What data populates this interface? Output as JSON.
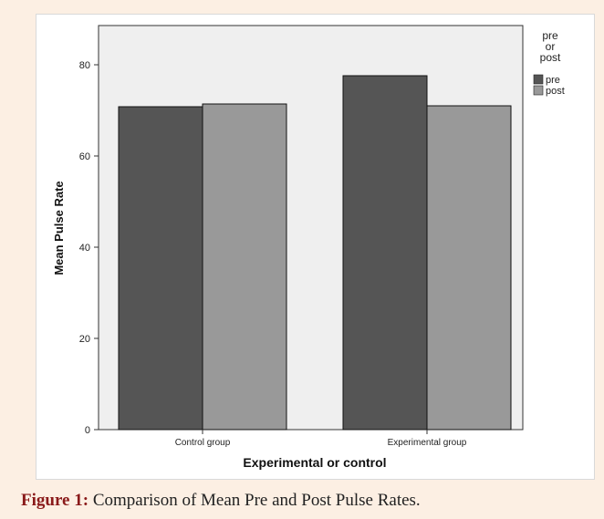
{
  "figure": {
    "caption_label": "Figure 1:",
    "caption_text": " Comparison of Mean Pre and Post Pulse Rates."
  },
  "chart_data": {
    "type": "bar",
    "categories": [
      "Control group",
      "Experimental group"
    ],
    "series": [
      {
        "name": "pre",
        "values": [
          70.8,
          77.6
        ],
        "color": "#555555"
      },
      {
        "name": "post",
        "values": [
          71.4,
          71.0
        ],
        "color": "#999999"
      }
    ],
    "xlabel": "Experimental or control",
    "ylabel": "Mean Pulse Rate",
    "ylim": [
      0,
      80
    ],
    "yticks": [
      0,
      20,
      40,
      60,
      80
    ],
    "legend_title": [
      "pre",
      "or",
      "post"
    ],
    "legend_position": "top-right",
    "grid": false,
    "plot_background": "#efefef"
  }
}
